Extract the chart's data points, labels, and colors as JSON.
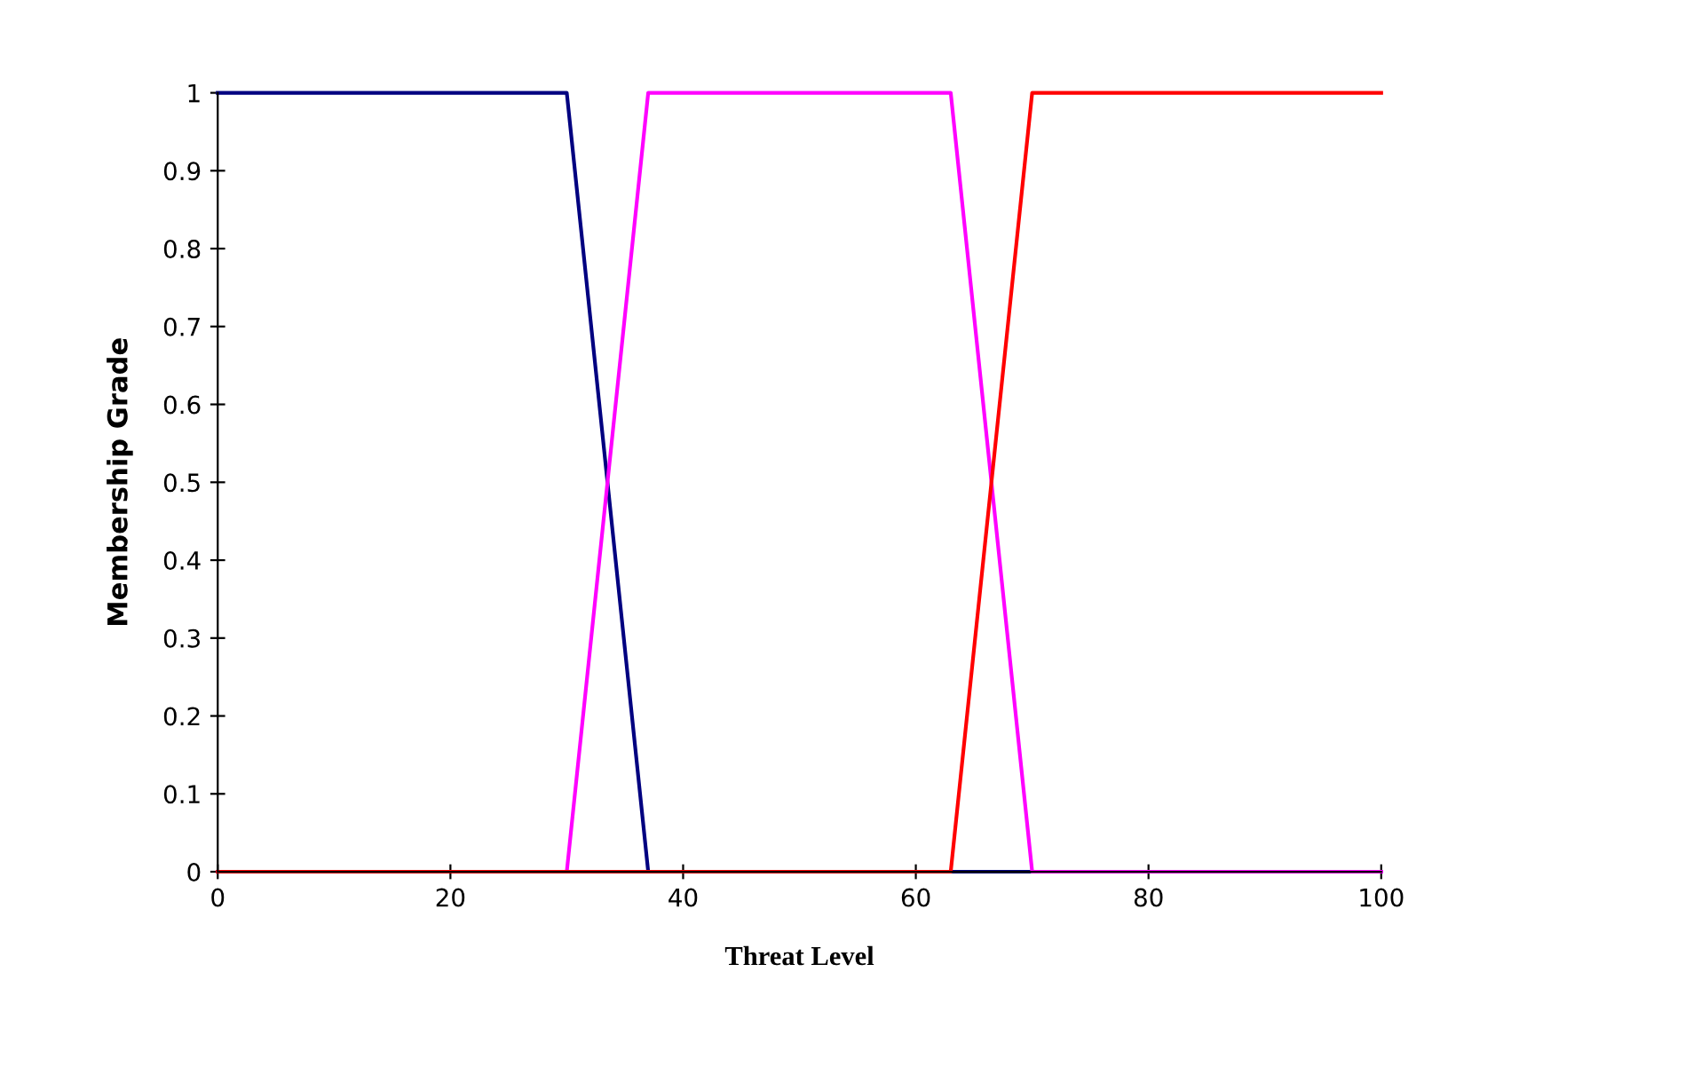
{
  "chart_data": {
    "type": "line",
    "xlabel": "Threat Level",
    "ylabel": "Membership Grade",
    "series": [
      {
        "color": "#000080",
        "x": [
          0,
          30,
          37,
          100
        ],
        "values": [
          1,
          1,
          0,
          0
        ]
      },
      {
        "color": "#ff00ff",
        "x": [
          0,
          30,
          37,
          63,
          70,
          100
        ],
        "values": [
          0,
          0,
          1,
          1,
          0,
          0
        ]
      },
      {
        "color": "#ff0000",
        "x": [
          0,
          63,
          70,
          100
        ],
        "values": [
          0,
          0,
          1,
          1
        ]
      }
    ],
    "xlim": [
      0,
      100
    ],
    "xticks": [
      0,
      20,
      40,
      60,
      80,
      100
    ],
    "ylim": [
      0,
      1
    ],
    "yticks": [
      0,
      0.1,
      0.2,
      0.3,
      0.4,
      0.5,
      0.6,
      0.7,
      0.8,
      0.9,
      1
    ],
    "grid": false,
    "legend": false,
    "marker": "none",
    "line_style": "solid"
  }
}
